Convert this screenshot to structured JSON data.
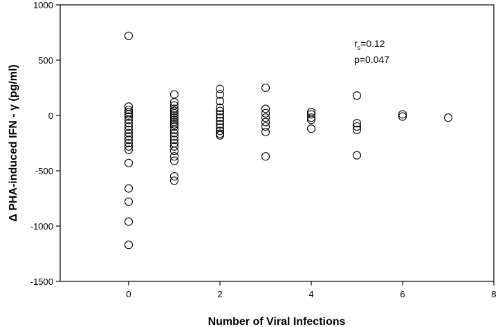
{
  "chart_data": {
    "type": "scatter",
    "title": "",
    "xlabel": "Number of Viral Infections",
    "ylabel": "Δ PHA-induced IFN - γ (pg/ml)",
    "xlim": [
      -1.5,
      8
    ],
    "ylim": [
      -1500,
      1000
    ],
    "xticks": [
      0,
      2,
      4,
      6,
      8
    ],
    "yticks": [
      -1500,
      -1000,
      -500,
      0,
      500,
      1000
    ],
    "grid": false,
    "annotation": {
      "r_prefix": "r",
      "r_sub": "s",
      "r_value": "=0.12",
      "p_text": "p=0.047"
    },
    "points": [
      {
        "x": 0,
        "y": 720
      },
      {
        "x": 0,
        "y": 80
      },
      {
        "x": 0,
        "y": 50
      },
      {
        "x": 0,
        "y": 30
      },
      {
        "x": 0,
        "y": 10
      },
      {
        "x": 0,
        "y": -10
      },
      {
        "x": 0,
        "y": -40
      },
      {
        "x": 0,
        "y": -70
      },
      {
        "x": 0,
        "y": -100
      },
      {
        "x": 0,
        "y": -130
      },
      {
        "x": 0,
        "y": -160
      },
      {
        "x": 0,
        "y": -190
      },
      {
        "x": 0,
        "y": -220
      },
      {
        "x": 0,
        "y": -250
      },
      {
        "x": 0,
        "y": -280
      },
      {
        "x": 0,
        "y": -310
      },
      {
        "x": 0,
        "y": -430
      },
      {
        "x": 0,
        "y": -660
      },
      {
        "x": 0,
        "y": -780
      },
      {
        "x": 0,
        "y": -960
      },
      {
        "x": 0,
        "y": -1170
      },
      {
        "x": 1,
        "y": 190
      },
      {
        "x": 1,
        "y": 120
      },
      {
        "x": 1,
        "y": 90
      },
      {
        "x": 1,
        "y": 60
      },
      {
        "x": 1,
        "y": 40
      },
      {
        "x": 1,
        "y": 20
      },
      {
        "x": 1,
        "y": 0
      },
      {
        "x": 1,
        "y": -20
      },
      {
        "x": 1,
        "y": -40
      },
      {
        "x": 1,
        "y": -60
      },
      {
        "x": 1,
        "y": -80
      },
      {
        "x": 1,
        "y": -100
      },
      {
        "x": 1,
        "y": -130
      },
      {
        "x": 1,
        "y": -160
      },
      {
        "x": 1,
        "y": -190
      },
      {
        "x": 1,
        "y": -220
      },
      {
        "x": 1,
        "y": -250
      },
      {
        "x": 1,
        "y": -280
      },
      {
        "x": 1,
        "y": -320
      },
      {
        "x": 1,
        "y": -370
      },
      {
        "x": 1,
        "y": -410
      },
      {
        "x": 1,
        "y": -550
      },
      {
        "x": 1,
        "y": -590
      },
      {
        "x": 2,
        "y": 240
      },
      {
        "x": 2,
        "y": 190
      },
      {
        "x": 2,
        "y": 130
      },
      {
        "x": 2,
        "y": 70
      },
      {
        "x": 2,
        "y": 40
      },
      {
        "x": 2,
        "y": 10
      },
      {
        "x": 2,
        "y": -20
      },
      {
        "x": 2,
        "y": -50
      },
      {
        "x": 2,
        "y": -80
      },
      {
        "x": 2,
        "y": -110
      },
      {
        "x": 2,
        "y": -140
      },
      {
        "x": 2,
        "y": -165
      },
      {
        "x": 2,
        "y": -180
      },
      {
        "x": 3,
        "y": 250
      },
      {
        "x": 3,
        "y": 60
      },
      {
        "x": 3,
        "y": 20
      },
      {
        "x": 3,
        "y": -20
      },
      {
        "x": 3,
        "y": -60
      },
      {
        "x": 3,
        "y": -100
      },
      {
        "x": 3,
        "y": -150
      },
      {
        "x": 3,
        "y": -370
      },
      {
        "x": 4,
        "y": 30
      },
      {
        "x": 4,
        "y": 10
      },
      {
        "x": 4,
        "y": -20
      },
      {
        "x": 4,
        "y": -40
      },
      {
        "x": 4,
        "y": -120
      },
      {
        "x": 5,
        "y": 180
      },
      {
        "x": 5,
        "y": -70
      },
      {
        "x": 5,
        "y": -100
      },
      {
        "x": 5,
        "y": -130
      },
      {
        "x": 5,
        "y": -360
      },
      {
        "x": 6,
        "y": 10
      },
      {
        "x": 6,
        "y": -10
      },
      {
        "x": 7,
        "y": -20
      }
    ]
  }
}
